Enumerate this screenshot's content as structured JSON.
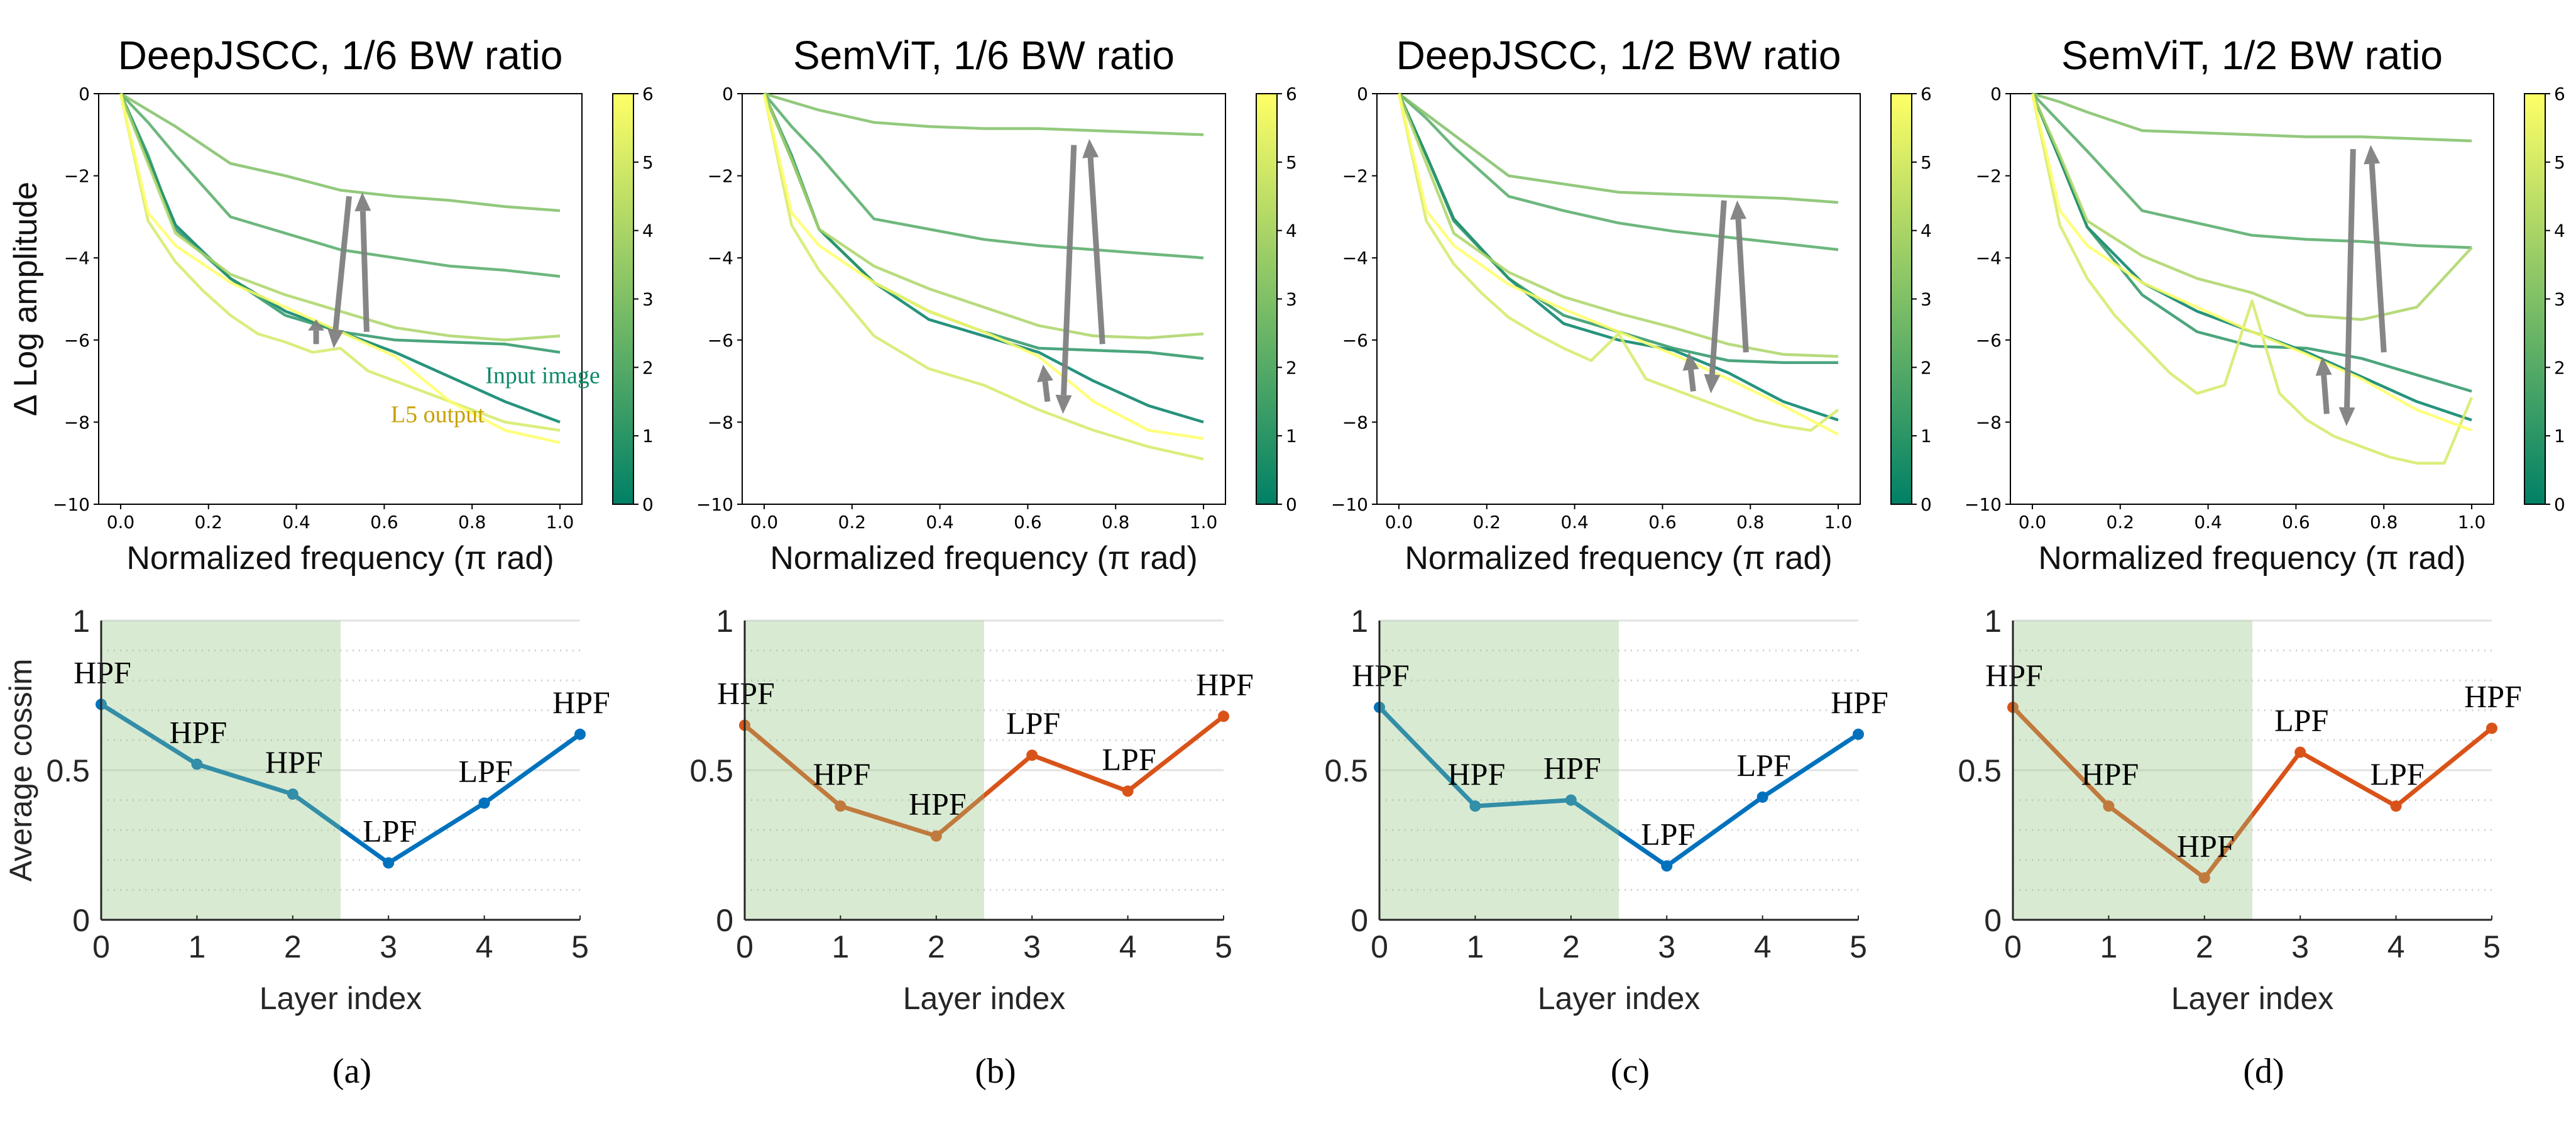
{
  "captions": [
    "(a)",
    "(b)",
    "(c)",
    "(d)"
  ],
  "colors": {
    "colormap": "summer",
    "layer_min": "#008066",
    "layer_max": "#ffff66",
    "arrow": "#808080",
    "deepjscc_line": "#0072bd",
    "semvit_line": "#d95319",
    "shade": "#d9ead3",
    "input_image_text": "#0f8a6a",
    "l5_output_text": "#c8a000"
  },
  "chart_data": [
    {
      "panel": "(a)",
      "type": "line",
      "title": "DeepJSCC, 1/6 BW ratio",
      "xlabel": "Normalized frequency (π rad)",
      "ylabel": "Δ Log amplitude",
      "xlim": [
        -0.05,
        1.05
      ],
      "ylim": [
        -10,
        0
      ],
      "xticks": [
        "0.0",
        "0.2",
        "0.4",
        "0.6",
        "0.8",
        "1.0"
      ],
      "yticks": [
        "0",
        "−2",
        "−4",
        "−6",
        "−8",
        "−10"
      ],
      "colorbar": {
        "range": [
          0,
          6
        ],
        "ticks": [
          "0",
          "1",
          "2",
          "3",
          "4",
          "5",
          "6"
        ]
      },
      "x": [
        0,
        0.0625,
        0.125,
        0.25,
        0.375,
        0.5,
        0.625,
        0.75,
        0.875,
        1.0
      ],
      "series": [
        {
          "layer": 0,
          "y": [
            0,
            -1.6,
            -3.2,
            -4.5,
            -5.3,
            -5.8,
            -6.3,
            -6.9,
            -7.5,
            -8.0
          ]
        },
        {
          "layer": 1,
          "y": [
            0,
            -1.5,
            -3.3,
            -4.5,
            -5.4,
            -5.8,
            -6.0,
            -6.05,
            -6.1,
            -6.3
          ]
        },
        {
          "layer": 2,
          "y": [
            0,
            -0.7,
            -1.5,
            -3.0,
            -3.4,
            -3.8,
            -4.0,
            -4.2,
            -4.3,
            -4.45
          ]
        },
        {
          "layer": 3,
          "y": [
            0,
            -0.4,
            -0.8,
            -1.7,
            -2.0,
            -2.35,
            -2.5,
            -2.6,
            -2.75,
            -2.85
          ]
        },
        {
          "layer": 4,
          "y": [
            0,
            -1.7,
            -3.4,
            -4.4,
            -4.9,
            -5.3,
            -5.7,
            -5.9,
            -6.0,
            -5.9
          ]
        },
        {
          "layer": 5,
          "x": [
            0,
            0.0625,
            0.125,
            0.1875,
            0.25,
            0.3125,
            0.375,
            0.4375,
            0.5,
            0.5625,
            0.625,
            0.75,
            0.875,
            1.0
          ],
          "y": [
            0,
            -3.1,
            -4.1,
            -4.8,
            -5.4,
            -5.85,
            -6.05,
            -6.3,
            -6.2,
            -6.75,
            -7.0,
            -7.5,
            -8.0,
            -8.2
          ]
        },
        {
          "layer": 6,
          "y": [
            0,
            -2.9,
            -3.7,
            -4.6,
            -5.2,
            -5.8,
            -6.4,
            -7.5,
            -8.2,
            -8.5
          ]
        }
      ],
      "arrows": [
        {
          "from": [
            0.445,
            -6.1
          ],
          "to": [
            0.445,
            -5.5
          ]
        },
        {
          "from": [
            0.52,
            -2.5
          ],
          "to": [
            0.485,
            -6.2
          ]
        },
        {
          "from": [
            0.56,
            -5.8
          ],
          "to": [
            0.55,
            -2.4
          ]
        }
      ],
      "annotations": [
        {
          "text": "Input image",
          "x": 0.83,
          "y": -7.05,
          "color": "#0f8a6a"
        },
        {
          "text": "L5 output",
          "x": 0.615,
          "y": -8.0,
          "color": "#c8a000"
        }
      ]
    },
    {
      "panel": "(a)",
      "type": "line",
      "xlabel": "Layer index",
      "ylabel": "Average cossim",
      "xlim": [
        0,
        5
      ],
      "ylim": [
        0,
        1
      ],
      "xticks": [
        "0",
        "1",
        "2",
        "3",
        "4",
        "5"
      ],
      "yticks": [
        "0",
        "0.5",
        "1"
      ],
      "shaded_x_range": [
        0,
        2.5
      ],
      "x": [
        0,
        1,
        2,
        3,
        4,
        5
      ],
      "values": [
        0.72,
        0.52,
        0.42,
        0.19,
        0.39,
        0.62
      ],
      "point_labels": [
        "HPF",
        "HPF",
        "HPF",
        "LPF",
        "LPF",
        "HPF"
      ],
      "color": "#0072bd"
    },
    {
      "panel": "(b)",
      "type": "line",
      "title": "SemViT, 1/6 BW ratio",
      "xlabel": "Normalized frequency (π rad)",
      "xlim": [
        -0.05,
        1.05
      ],
      "ylim": [
        -10,
        0
      ],
      "xticks": [
        "0.0",
        "0.2",
        "0.4",
        "0.6",
        "0.8",
        "1.0"
      ],
      "yticks": [
        "0",
        "−2",
        "−4",
        "−6",
        "−8",
        "−10"
      ],
      "colorbar": {
        "range": [
          0,
          6
        ],
        "ticks": [
          "0",
          "1",
          "2",
          "3",
          "4",
          "5",
          "6"
        ]
      },
      "x": [
        0,
        0.0625,
        0.125,
        0.25,
        0.375,
        0.5,
        0.625,
        0.75,
        0.875,
        1.0
      ],
      "series": [
        {
          "layer": 0,
          "y": [
            0,
            -1.6,
            -3.3,
            -4.6,
            -5.5,
            -5.9,
            -6.3,
            -7.0,
            -7.6,
            -8.0
          ]
        },
        {
          "layer": 1,
          "y": [
            0,
            -1.5,
            -3.3,
            -4.6,
            -5.3,
            -5.8,
            -6.2,
            -6.25,
            -6.3,
            -6.45
          ]
        },
        {
          "layer": 2,
          "y": [
            0,
            -0.8,
            -1.5,
            -3.05,
            -3.3,
            -3.55,
            -3.7,
            -3.8,
            -3.9,
            -4.0
          ]
        },
        {
          "layer": 3,
          "y": [
            0,
            -0.2,
            -0.4,
            -0.7,
            -0.8,
            -0.85,
            -0.85,
            -0.9,
            -0.95,
            -1.0
          ]
        },
        {
          "layer": 4,
          "y": [
            0,
            -1.6,
            -3.3,
            -4.2,
            -4.75,
            -5.2,
            -5.65,
            -5.9,
            -5.95,
            -5.85
          ]
        },
        {
          "layer": 5,
          "y": [
            0,
            -3.2,
            -4.3,
            -5.9,
            -6.7,
            -7.1,
            -7.7,
            -8.2,
            -8.6,
            -8.9
          ]
        },
        {
          "layer": 6,
          "y": [
            0,
            -2.9,
            -3.7,
            -4.6,
            -5.3,
            -5.8,
            -6.4,
            -7.5,
            -8.2,
            -8.4
          ]
        }
      ],
      "arrows": [
        {
          "from": [
            0.645,
            -7.5
          ],
          "to": [
            0.635,
            -6.6
          ]
        },
        {
          "from": [
            0.705,
            -1.25
          ],
          "to": [
            0.68,
            -7.8
          ]
        },
        {
          "from": [
            0.77,
            -6.1
          ],
          "to": [
            0.74,
            -1.1
          ]
        }
      ]
    },
    {
      "panel": "(b)",
      "type": "line",
      "xlabel": "Layer index",
      "xlim": [
        0,
        5
      ],
      "ylim": [
        0,
        1
      ],
      "xticks": [
        "0",
        "1",
        "2",
        "3",
        "4",
        "5"
      ],
      "yticks": [
        "0",
        "0.5",
        "1"
      ],
      "shaded_x_range": [
        0,
        2.5
      ],
      "x": [
        0,
        1,
        2,
        3,
        4,
        5
      ],
      "values": [
        0.65,
        0.38,
        0.28,
        0.55,
        0.43,
        0.68
      ],
      "point_labels": [
        "HPF",
        "HPF",
        "HPF",
        "LPF",
        "LPF",
        "HPF"
      ],
      "color": "#d95319"
    },
    {
      "panel": "(c)",
      "type": "line",
      "title": "DeepJSCC, 1/2 BW ratio",
      "xlabel": "Normalized frequency (π rad)",
      "xlim": [
        -0.05,
        1.05
      ],
      "ylim": [
        -10,
        0
      ],
      "xticks": [
        "0.0",
        "0.2",
        "0.4",
        "0.6",
        "0.8",
        "1.0"
      ],
      "yticks": [
        "0",
        "−2",
        "−4",
        "−6",
        "−8",
        "−10"
      ],
      "colorbar": {
        "range": [
          0,
          6
        ],
        "ticks": [
          "0",
          "1",
          "2",
          "3",
          "4",
          "5",
          "6"
        ]
      },
      "x": [
        0,
        0.0625,
        0.125,
        0.25,
        0.375,
        0.5,
        0.625,
        0.75,
        0.875,
        1.0
      ],
      "series": [
        {
          "layer": 0,
          "y": [
            0,
            -1.5,
            -3.05,
            -4.5,
            -5.6,
            -6.0,
            -6.25,
            -6.8,
            -7.5,
            -7.95
          ]
        },
        {
          "layer": 1,
          "y": [
            0,
            -1.5,
            -3.1,
            -4.5,
            -5.4,
            -5.8,
            -6.2,
            -6.5,
            -6.55,
            -6.55
          ]
        },
        {
          "layer": 2,
          "y": [
            0,
            -0.6,
            -1.3,
            -2.5,
            -2.85,
            -3.15,
            -3.35,
            -3.5,
            -3.65,
            -3.8
          ]
        },
        {
          "layer": 3,
          "y": [
            0,
            -0.5,
            -1.0,
            -2.0,
            -2.2,
            -2.4,
            -2.45,
            -2.5,
            -2.55,
            -2.65
          ]
        },
        {
          "layer": 4,
          "y": [
            0,
            -1.7,
            -3.4,
            -4.35,
            -4.95,
            -5.35,
            -5.7,
            -6.1,
            -6.35,
            -6.4
          ]
        },
        {
          "layer": 5,
          "x": [
            0,
            0.0625,
            0.125,
            0.1875,
            0.25,
            0.3125,
            0.375,
            0.4375,
            0.5,
            0.5625,
            0.625,
            0.6875,
            0.75,
            0.8125,
            0.875,
            0.9375,
            1.0
          ],
          "y": [
            0,
            -3.1,
            -4.15,
            -4.85,
            -5.45,
            -5.85,
            -6.2,
            -6.5,
            -5.85,
            -6.95,
            -7.2,
            -7.45,
            -7.7,
            -7.95,
            -8.1,
            -8.2,
            -7.7
          ]
        },
        {
          "layer": 6,
          "y": [
            0,
            -2.85,
            -3.7,
            -4.65,
            -5.25,
            -5.8,
            -6.35,
            -6.95,
            -7.6,
            -8.3
          ]
        }
      ],
      "arrows": [
        {
          "from": [
            0.67,
            -7.25
          ],
          "to": [
            0.66,
            -6.3
          ]
        },
        {
          "from": [
            0.74,
            -2.6
          ],
          "to": [
            0.71,
            -7.3
          ]
        },
        {
          "from": [
            0.79,
            -6.3
          ],
          "to": [
            0.77,
            -2.6
          ]
        }
      ]
    },
    {
      "panel": "(c)",
      "type": "line",
      "xlabel": "Layer index",
      "xlim": [
        0,
        5
      ],
      "ylim": [
        0,
        1
      ],
      "xticks": [
        "0",
        "1",
        "2",
        "3",
        "4",
        "5"
      ],
      "yticks": [
        "0",
        "0.5",
        "1"
      ],
      "shaded_x_range": [
        0,
        2.5
      ],
      "x": [
        0,
        1,
        2,
        3,
        4,
        5
      ],
      "values": [
        0.71,
        0.38,
        0.4,
        0.18,
        0.41,
        0.62
      ],
      "point_labels": [
        "HPF",
        "HPF",
        "HPF",
        "LPF",
        "LPF",
        "HPF"
      ],
      "color": "#0072bd"
    },
    {
      "panel": "(d)",
      "type": "line",
      "title": "SemViT, 1/2 BW ratio",
      "xlabel": "Normalized frequency (π rad)",
      "xlim": [
        -0.05,
        1.05
      ],
      "ylim": [
        -10,
        0
      ],
      "xticks": [
        "0.0",
        "0.2",
        "0.4",
        "0.6",
        "0.8",
        "1.0"
      ],
      "yticks": [
        "0",
        "−2",
        "−4",
        "−6",
        "−8",
        "−10"
      ],
      "colorbar": {
        "range": [
          0,
          6
        ],
        "ticks": [
          "0",
          "1",
          "2",
          "3",
          "4",
          "5",
          "6"
        ]
      },
      "x": [
        0,
        0.0625,
        0.125,
        0.25,
        0.375,
        0.5,
        0.625,
        0.75,
        0.875,
        1.0
      ],
      "series": [
        {
          "layer": 0,
          "y": [
            0,
            -1.6,
            -3.25,
            -4.6,
            -5.3,
            -5.8,
            -6.3,
            -6.9,
            -7.5,
            -7.95
          ]
        },
        {
          "layer": 1,
          "y": [
            0,
            -1.6,
            -3.25,
            -4.9,
            -5.8,
            -6.15,
            -6.2,
            -6.45,
            -6.85,
            -7.25
          ]
        },
        {
          "layer": 2,
          "y": [
            0,
            -0.7,
            -1.4,
            -2.85,
            -3.15,
            -3.45,
            -3.55,
            -3.6,
            -3.7,
            -3.75
          ]
        },
        {
          "layer": 3,
          "y": [
            0,
            -0.2,
            -0.45,
            -0.9,
            -0.95,
            -1.0,
            -1.05,
            -1.05,
            -1.1,
            -1.15
          ]
        },
        {
          "layer": 4,
          "y": [
            0,
            -1.5,
            -3.1,
            -3.95,
            -4.5,
            -4.85,
            -5.4,
            -5.5,
            -5.2,
            -3.75
          ]
        },
        {
          "layer": 5,
          "x": [
            0,
            0.0625,
            0.125,
            0.1875,
            0.25,
            0.3125,
            0.375,
            0.4375,
            0.5,
            0.5625,
            0.625,
            0.6875,
            0.75,
            0.8125,
            0.875,
            0.9375,
            1.0
          ],
          "y": [
            0,
            -3.2,
            -4.5,
            -5.4,
            -6.1,
            -6.8,
            -7.3,
            -7.1,
            -5.05,
            -7.3,
            -7.95,
            -8.35,
            -8.6,
            -8.85,
            -9.0,
            -9.0,
            -7.4
          ]
        },
        {
          "layer": 6,
          "y": [
            0,
            -2.85,
            -3.7,
            -4.6,
            -5.2,
            -5.8,
            -6.35,
            -6.95,
            -7.7,
            -8.2
          ]
        }
      ],
      "arrows": [
        {
          "from": [
            0.67,
            -7.8
          ],
          "to": [
            0.66,
            -6.4
          ]
        },
        {
          "from": [
            0.73,
            -1.35
          ],
          "to": [
            0.715,
            -8.1
          ]
        },
        {
          "from": [
            0.8,
            -6.3
          ],
          "to": [
            0.77,
            -1.25
          ]
        }
      ]
    },
    {
      "panel": "(d)",
      "type": "line",
      "xlabel": "Layer index",
      "xlim": [
        0,
        5
      ],
      "ylim": [
        0,
        1
      ],
      "xticks": [
        "0",
        "1",
        "2",
        "3",
        "4",
        "5"
      ],
      "yticks": [
        "0",
        "0.5",
        "1"
      ],
      "shaded_x_range": [
        0,
        2.5
      ],
      "x": [
        0,
        1,
        2,
        3,
        4,
        5
      ],
      "values": [
        0.71,
        0.38,
        0.14,
        0.56,
        0.38,
        0.64
      ],
      "point_labels": [
        "HPF",
        "HPF",
        "HPF",
        "LPF",
        "LPF",
        "HPF"
      ],
      "color": "#d95319"
    }
  ]
}
